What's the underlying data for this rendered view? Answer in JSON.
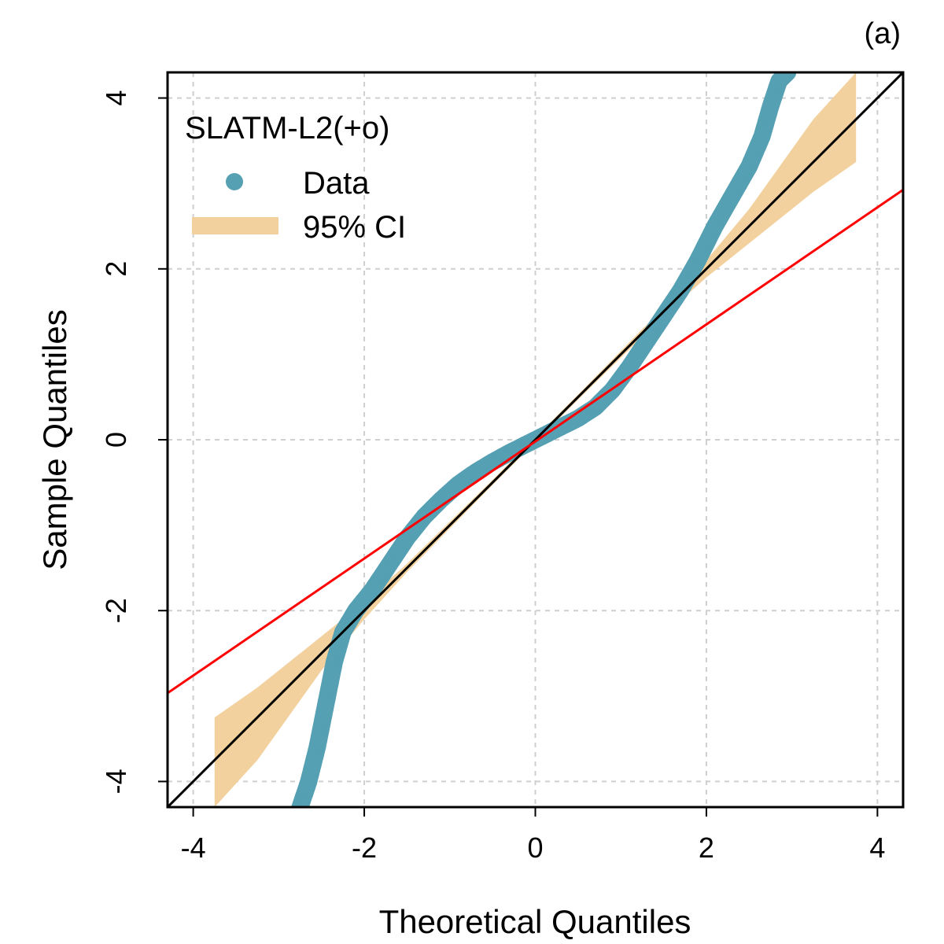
{
  "panel_label": "(a)",
  "chart_data": {
    "type": "scatter",
    "title": "",
    "xlabel": "Theoretical Quantiles",
    "ylabel": "Sample Quantiles",
    "xlim": [
      -4.3,
      4.3
    ],
    "ylim": [
      -4.3,
      4.3
    ],
    "x_ticks": [
      -4,
      -2,
      0,
      2,
      4
    ],
    "y_ticks": [
      -4,
      -2,
      0,
      2,
      4
    ],
    "x_tick_labels": [
      "-4",
      "-2",
      "0",
      "2",
      "4"
    ],
    "y_tick_labels": [
      "-4",
      "-2",
      "0",
      "2",
      "4"
    ],
    "grid": true,
    "legend": {
      "placement": "top-left",
      "title": "SLATM-L2(+o)",
      "entries": [
        {
          "label": "Data",
          "color": "#55a0b2",
          "kind": "point"
        },
        {
          "label": "95% CI",
          "color": "#f2d19e",
          "kind": "band"
        }
      ]
    },
    "series": [
      {
        "name": "Data",
        "color": "#55a0b2",
        "points": [
          [
            -2.75,
            -4.3
          ],
          [
            -2.65,
            -4.0
          ],
          [
            -2.55,
            -3.6
          ],
          [
            -2.45,
            -3.1
          ],
          [
            -2.35,
            -2.6
          ],
          [
            -2.25,
            -2.25
          ],
          [
            -2.1,
            -2.0
          ],
          [
            -1.9,
            -1.75
          ],
          [
            -1.7,
            -1.45
          ],
          [
            -1.5,
            -1.15
          ],
          [
            -1.3,
            -0.9
          ],
          [
            -1.1,
            -0.7
          ],
          [
            -0.9,
            -0.52
          ],
          [
            -0.7,
            -0.38
          ],
          [
            -0.5,
            -0.26
          ],
          [
            -0.3,
            -0.15
          ],
          [
            -0.1,
            -0.05
          ],
          [
            0.0,
            0.0
          ],
          [
            0.1,
            0.05
          ],
          [
            0.3,
            0.15
          ],
          [
            0.5,
            0.25
          ],
          [
            0.7,
            0.38
          ],
          [
            0.9,
            0.58
          ],
          [
            1.1,
            0.85
          ],
          [
            1.3,
            1.15
          ],
          [
            1.5,
            1.45
          ],
          [
            1.7,
            1.75
          ],
          [
            1.9,
            2.1
          ],
          [
            2.1,
            2.5
          ],
          [
            2.3,
            2.85
          ],
          [
            2.5,
            3.2
          ],
          [
            2.65,
            3.55
          ],
          [
            2.75,
            3.9
          ],
          [
            2.85,
            4.2
          ],
          [
            2.95,
            4.3
          ]
        ]
      }
    ],
    "ci_band": {
      "name": "95% CI",
      "color": "#f2d19e",
      "x": [
        -3.75,
        -3.25,
        -2.5,
        -2.0,
        -1.5,
        -1.0,
        -0.5,
        0.0,
        0.5,
        1.0,
        1.5,
        2.0,
        2.5,
        3.25,
        3.75
      ],
      "lower": [
        -4.3,
        -3.75,
        -2.7,
        -2.1,
        -1.55,
        -1.04,
        -0.53,
        -0.03,
        0.47,
        0.96,
        1.45,
        1.9,
        2.3,
        2.9,
        3.25
      ],
      "upper": [
        -3.25,
        -2.9,
        -2.3,
        -1.9,
        -1.45,
        -0.96,
        -0.47,
        0.03,
        0.53,
        1.04,
        1.55,
        2.1,
        2.7,
        3.75,
        4.3
      ]
    },
    "reference_lines": [
      {
        "name": "identity line",
        "color": "#000000",
        "intercept": 0.0,
        "slope": 1.0
      },
      {
        "name": "fitted line",
        "color": "#ff0000",
        "intercept": -0.02,
        "slope": 0.685
      }
    ]
  }
}
